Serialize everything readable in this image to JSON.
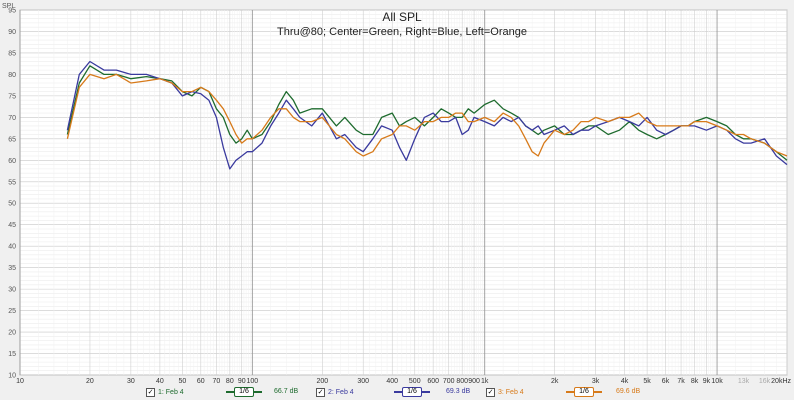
{
  "chart_data": {
    "type": "line",
    "title": "All SPL",
    "subtitle": "Thru@80; Center=Green, Right=Blue, Left=Orange",
    "ylabel": "SPL",
    "xlabel": "",
    "xscale": "log",
    "xlim": [
      10,
      20000
    ],
    "ylim": [
      10,
      95
    ],
    "grid": true,
    "y_ticks": [
      95,
      90,
      85,
      80,
      75,
      70,
      65,
      60,
      55,
      50,
      45,
      40,
      35,
      30,
      25,
      20,
      15,
      10
    ],
    "x_ticks": [
      {
        "v": 10,
        "l": "10"
      },
      {
        "v": 20,
        "l": "20"
      },
      {
        "v": 30,
        "l": "30"
      },
      {
        "v": 40,
        "l": "40"
      },
      {
        "v": 50,
        "l": "50"
      },
      {
        "v": 60,
        "l": "60"
      },
      {
        "v": 70,
        "l": "70"
      },
      {
        "v": 80,
        "l": "80"
      },
      {
        "v": 90,
        "l": "90"
      },
      {
        "v": 100,
        "l": "100"
      },
      {
        "v": 200,
        "l": "200"
      },
      {
        "v": 300,
        "l": "300"
      },
      {
        "v": 400,
        "l": "400"
      },
      {
        "v": 500,
        "l": "500"
      },
      {
        "v": 600,
        "l": "600"
      },
      {
        "v": 700,
        "l": "700"
      },
      {
        "v": 800,
        "l": "800"
      },
      {
        "v": 900,
        "l": "900"
      },
      {
        "v": 1000,
        "l": "1k"
      },
      {
        "v": 2000,
        "l": "2k"
      },
      {
        "v": 3000,
        "l": "3k"
      },
      {
        "v": 4000,
        "l": "4k"
      },
      {
        "v": 5000,
        "l": "5k"
      },
      {
        "v": 6000,
        "l": "6k"
      },
      {
        "v": 7000,
        "l": "7k"
      },
      {
        "v": 8000,
        "l": "8k"
      },
      {
        "v": 9000,
        "l": "9k"
      },
      {
        "v": 10000,
        "l": "10k"
      },
      {
        "v": 13000,
        "l": "13k",
        "muted": true
      },
      {
        "v": 16000,
        "l": "16k",
        "muted": true
      },
      {
        "v": 20000,
        "l": "20kHz"
      }
    ],
    "series": [
      {
        "name": "1: Feb 4",
        "color": "#1e6b2e",
        "points": [
          [
            16,
            66
          ],
          [
            18,
            78
          ],
          [
            20,
            82
          ],
          [
            23,
            80
          ],
          [
            26,
            80
          ],
          [
            30,
            79
          ],
          [
            35,
            79.5
          ],
          [
            40,
            79
          ],
          [
            45,
            78.5
          ],
          [
            50,
            76
          ],
          [
            55,
            75
          ],
          [
            60,
            77
          ],
          [
            65,
            76
          ],
          [
            70,
            72
          ],
          [
            75,
            70
          ],
          [
            80,
            66
          ],
          [
            85,
            64
          ],
          [
            90,
            65
          ],
          [
            95,
            67
          ],
          [
            100,
            65
          ],
          [
            110,
            66
          ],
          [
            120,
            69
          ],
          [
            130,
            73
          ],
          [
            140,
            76
          ],
          [
            150,
            74
          ],
          [
            160,
            71
          ],
          [
            180,
            72
          ],
          [
            200,
            72
          ],
          [
            230,
            68
          ],
          [
            250,
            70
          ],
          [
            280,
            67
          ],
          [
            300,
            66
          ],
          [
            330,
            66
          ],
          [
            360,
            70
          ],
          [
            400,
            71
          ],
          [
            430,
            68
          ],
          [
            460,
            69
          ],
          [
            500,
            70
          ],
          [
            550,
            68
          ],
          [
            600,
            70
          ],
          [
            650,
            72
          ],
          [
            700,
            71
          ],
          [
            750,
            70
          ],
          [
            800,
            70
          ],
          [
            850,
            72
          ],
          [
            900,
            71
          ],
          [
            1000,
            73
          ],
          [
            1100,
            74
          ],
          [
            1200,
            72
          ],
          [
            1300,
            71
          ],
          [
            1400,
            70
          ],
          [
            1500,
            68
          ],
          [
            1600,
            67
          ],
          [
            1700,
            66
          ],
          [
            1800,
            67
          ],
          [
            2000,
            68
          ],
          [
            2200,
            66
          ],
          [
            2400,
            66
          ],
          [
            2600,
            67
          ],
          [
            2800,
            68
          ],
          [
            3000,
            68
          ],
          [
            3400,
            66
          ],
          [
            3800,
            67
          ],
          [
            4200,
            69
          ],
          [
            4600,
            67
          ],
          [
            5000,
            66
          ],
          [
            5500,
            65
          ],
          [
            6000,
            66
          ],
          [
            6500,
            67
          ],
          [
            7000,
            68
          ],
          [
            7500,
            68
          ],
          [
            8000,
            69
          ],
          [
            9000,
            70
          ],
          [
            10000,
            69
          ],
          [
            11000,
            68
          ],
          [
            12000,
            66
          ],
          [
            13000,
            65
          ],
          [
            14000,
            65
          ],
          [
            16000,
            64
          ],
          [
            18000,
            62
          ],
          [
            20000,
            60
          ]
        ]
      },
      {
        "name": "2: Feb 4",
        "color": "#3a3a9e",
        "points": [
          [
            16,
            67
          ],
          [
            18,
            80
          ],
          [
            20,
            83
          ],
          [
            23,
            81
          ],
          [
            26,
            81
          ],
          [
            30,
            80
          ],
          [
            35,
            80
          ],
          [
            40,
            79
          ],
          [
            45,
            78
          ],
          [
            50,
            75
          ],
          [
            55,
            76
          ],
          [
            60,
            75.5
          ],
          [
            65,
            74
          ],
          [
            70,
            70
          ],
          [
            75,
            63
          ],
          [
            80,
            58
          ],
          [
            85,
            60
          ],
          [
            90,
            61
          ],
          [
            95,
            62
          ],
          [
            100,
            62
          ],
          [
            110,
            64
          ],
          [
            120,
            68
          ],
          [
            130,
            71
          ],
          [
            140,
            74
          ],
          [
            150,
            72
          ],
          [
            160,
            70
          ],
          [
            180,
            68
          ],
          [
            200,
            71
          ],
          [
            230,
            65
          ],
          [
            250,
            66
          ],
          [
            280,
            63
          ],
          [
            300,
            62
          ],
          [
            330,
            65
          ],
          [
            360,
            68
          ],
          [
            400,
            67
          ],
          [
            430,
            63
          ],
          [
            460,
            60
          ],
          [
            500,
            65
          ],
          [
            550,
            70
          ],
          [
            600,
            71
          ],
          [
            650,
            69
          ],
          [
            700,
            69
          ],
          [
            750,
            70
          ],
          [
            800,
            66
          ],
          [
            850,
            67
          ],
          [
            900,
            70
          ],
          [
            1000,
            69
          ],
          [
            1100,
            68
          ],
          [
            1200,
            70
          ],
          [
            1300,
            69
          ],
          [
            1400,
            70
          ],
          [
            1500,
            68
          ],
          [
            1600,
            67
          ],
          [
            1700,
            68
          ],
          [
            1800,
            66
          ],
          [
            2000,
            67
          ],
          [
            2200,
            68
          ],
          [
            2400,
            66
          ],
          [
            2600,
            67
          ],
          [
            2800,
            67
          ],
          [
            3000,
            68
          ],
          [
            3400,
            69
          ],
          [
            3800,
            70
          ],
          [
            4200,
            69
          ],
          [
            4600,
            68
          ],
          [
            5000,
            70
          ],
          [
            5500,
            67
          ],
          [
            6000,
            66
          ],
          [
            6500,
            67
          ],
          [
            7000,
            68
          ],
          [
            7500,
            68
          ],
          [
            8000,
            68
          ],
          [
            9000,
            67
          ],
          [
            10000,
            68
          ],
          [
            11000,
            67
          ],
          [
            12000,
            65
          ],
          [
            13000,
            64
          ],
          [
            14000,
            64
          ],
          [
            16000,
            65
          ],
          [
            18000,
            61
          ],
          [
            20000,
            59
          ]
        ]
      },
      {
        "name": "3: Feb 4",
        "color": "#d77a1a",
        "points": [
          [
            16,
            65
          ],
          [
            18,
            77
          ],
          [
            20,
            80
          ],
          [
            23,
            79
          ],
          [
            26,
            80
          ],
          [
            30,
            78
          ],
          [
            35,
            78.5
          ],
          [
            40,
            79
          ],
          [
            45,
            78
          ],
          [
            50,
            76
          ],
          [
            55,
            76
          ],
          [
            60,
            77
          ],
          [
            65,
            76
          ],
          [
            70,
            74
          ],
          [
            75,
            72
          ],
          [
            80,
            69
          ],
          [
            85,
            66
          ],
          [
            90,
            64
          ],
          [
            95,
            65
          ],
          [
            100,
            65
          ],
          [
            110,
            67
          ],
          [
            120,
            70
          ],
          [
            130,
            72
          ],
          [
            140,
            72
          ],
          [
            150,
            70
          ],
          [
            160,
            69
          ],
          [
            180,
            69
          ],
          [
            200,
            70
          ],
          [
            230,
            66
          ],
          [
            250,
            65
          ],
          [
            280,
            62
          ],
          [
            300,
            61
          ],
          [
            330,
            62
          ],
          [
            360,
            65
          ],
          [
            400,
            66
          ],
          [
            430,
            68
          ],
          [
            460,
            68
          ],
          [
            500,
            67
          ],
          [
            550,
            69
          ],
          [
            600,
            69
          ],
          [
            650,
            70
          ],
          [
            700,
            70
          ],
          [
            750,
            71
          ],
          [
            800,
            71
          ],
          [
            850,
            69
          ],
          [
            900,
            69
          ],
          [
            1000,
            70
          ],
          [
            1100,
            69
          ],
          [
            1200,
            71
          ],
          [
            1300,
            70
          ],
          [
            1400,
            68
          ],
          [
            1500,
            65
          ],
          [
            1600,
            62
          ],
          [
            1700,
            61
          ],
          [
            1800,
            64
          ],
          [
            2000,
            67
          ],
          [
            2200,
            66
          ],
          [
            2400,
            67
          ],
          [
            2600,
            69
          ],
          [
            2800,
            69
          ],
          [
            3000,
            70
          ],
          [
            3400,
            69
          ],
          [
            3800,
            70
          ],
          [
            4200,
            70
          ],
          [
            4600,
            71
          ],
          [
            5000,
            69
          ],
          [
            5500,
            68
          ],
          [
            6000,
            68
          ],
          [
            6500,
            68
          ],
          [
            7000,
            68
          ],
          [
            7500,
            68
          ],
          [
            8000,
            69
          ],
          [
            9000,
            69
          ],
          [
            10000,
            68
          ],
          [
            11000,
            67
          ],
          [
            12000,
            66
          ],
          [
            13000,
            66
          ],
          [
            14000,
            65
          ],
          [
            16000,
            64
          ],
          [
            18000,
            62
          ],
          [
            20000,
            61
          ]
        ]
      }
    ]
  },
  "legend": [
    {
      "check": "✓",
      "name": "1: Feb 4",
      "smoothing": "1/6",
      "level": "66.7 dB",
      "color": "#1e6b2e"
    },
    {
      "check": "✓",
      "name": "2: Feb 4",
      "smoothing": "1/6",
      "level": "69.3 dB",
      "color": "#3a3a9e"
    },
    {
      "check": "✓",
      "name": "3: Feb 4",
      "smoothing": "1/6",
      "level": "69.6 dB",
      "color": "#d77a1a"
    }
  ]
}
